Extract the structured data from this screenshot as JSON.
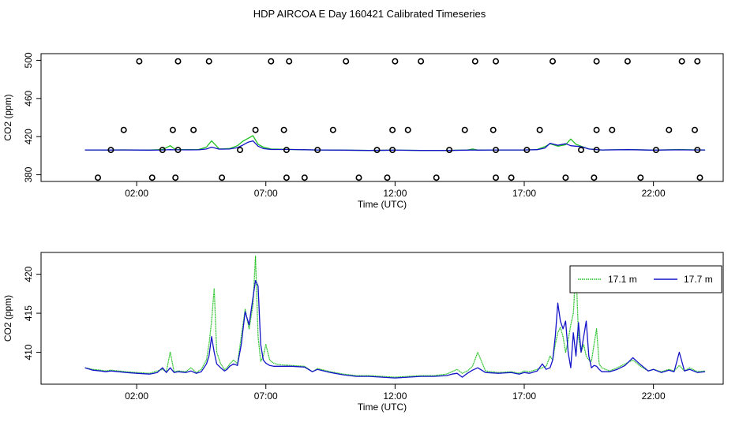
{
  "title": "HDP AIRCOA E  Day 160421  Calibrated Timeseries",
  "colors": {
    "green": "#1fc01f",
    "blue": "#1313c8",
    "axis": "#000000"
  },
  "chart_data": [
    {
      "type": "scatter",
      "xlabel": "Time (UTC)",
      "ylabel": "CO2 (ppm)",
      "xlim": [
        -1.7,
        24.7
      ],
      "ylim": [
        373,
        507
      ],
      "xticks": [
        2,
        7,
        12,
        17,
        22
      ],
      "xtick_labels": [
        "02:00",
        "07:00",
        "12:00",
        "17:00",
        "22:00"
      ],
      "yticks": [
        380,
        420,
        460,
        500
      ],
      "ytick_labels": [
        "380",
        "420",
        "460",
        "500"
      ],
      "grid": false,
      "legend": "none",
      "calibration_points": {
        "x": [
          0.5,
          1.0,
          1.5,
          2.1,
          2.6,
          3.0,
          3.4,
          3.5,
          3.6,
          3.6,
          4.2,
          4.8,
          5.3,
          6.0,
          6.6,
          7.2,
          7.7,
          7.8,
          7.8,
          7.9,
          8.5,
          9.0,
          9.6,
          10.1,
          10.6,
          11.3,
          11.7,
          11.9,
          11.9,
          12.0,
          12.5,
          13.0,
          13.6,
          14.1,
          14.7,
          15.1,
          15.8,
          15.9,
          15.9,
          15.9,
          16.5,
          17.1,
          17.6,
          18.1,
          18.6,
          19.2,
          19.7,
          19.8,
          19.8,
          19.8,
          20.4,
          21.0,
          21.5,
          22.1,
          22.6,
          23.1,
          23.6,
          23.7,
          23.7,
          23.8
        ],
        "y": [
          377,
          406,
          427,
          499,
          377,
          406,
          427,
          377,
          406,
          499,
          427,
          499,
          377,
          406,
          427,
          499,
          427,
          377,
          406,
          499,
          377,
          406,
          427,
          499,
          377,
          406,
          377,
          406,
          427,
          499,
          427,
          499,
          377,
          406,
          427,
          499,
          427,
          377,
          406,
          499,
          377,
          406,
          427,
          499,
          377,
          406,
          377,
          406,
          427,
          499,
          427,
          499,
          377,
          406,
          427,
          499,
          427,
          406,
          499,
          377
        ]
      },
      "series": [
        {
          "name": "17.1 m",
          "color": "#1fc01f",
          "x": [
            0,
            0.5,
            1,
            1.5,
            2,
            2.5,
            3.0,
            3.3,
            3.5,
            4.0,
            4.4,
            4.7,
            4.9,
            5.2,
            5.6,
            5.9,
            6.1,
            6.3,
            6.5,
            6.7,
            6.9,
            7.2,
            8,
            9,
            10,
            11,
            12,
            13,
            14,
            14.8,
            15.0,
            15.2,
            16,
            17,
            17.5,
            17.8,
            18.0,
            18.3,
            18.6,
            18.8,
            19.0,
            19.2,
            19.5,
            20,
            21,
            22,
            23,
            23.5,
            24
          ],
          "y": [
            406.0,
            406.0,
            406.0,
            406.2,
            406.0,
            405.9,
            406.5,
            410.5,
            406.5,
            406.3,
            406.5,
            409.0,
            415.5,
            407.0,
            407.5,
            410.5,
            415.0,
            418.0,
            421.0,
            412.0,
            409.0,
            407.0,
            406.5,
            406.0,
            405.8,
            405.5,
            405.8,
            405.5,
            405.5,
            406.0,
            407.0,
            406.0,
            406.0,
            406.0,
            406.5,
            409.5,
            412.5,
            410.0,
            411.5,
            417.5,
            412.0,
            410.0,
            407.0,
            406.0,
            406.5,
            405.8,
            406.5,
            406.2,
            406.0
          ]
        },
        {
          "name": "17.7 m",
          "color": "#1313c8",
          "x": [
            0,
            0.5,
            1,
            1.5,
            2,
            2.5,
            3.0,
            3.3,
            3.5,
            4.0,
            4.4,
            4.7,
            4.9,
            5.2,
            5.6,
            5.9,
            6.1,
            6.3,
            6.5,
            6.7,
            6.9,
            7.2,
            8,
            9,
            10,
            11,
            12,
            13,
            14,
            14.8,
            15.0,
            15.2,
            16,
            17,
            17.5,
            17.8,
            18.0,
            18.3,
            18.6,
            18.8,
            19.0,
            19.2,
            19.5,
            20,
            21,
            22,
            23,
            23.5,
            24
          ],
          "y": [
            406.0,
            406.0,
            405.9,
            406.0,
            405.9,
            405.8,
            406.0,
            406.3,
            406.2,
            406.1,
            406.2,
            407.0,
            409.0,
            406.8,
            407.0,
            408.5,
            411.0,
            414.0,
            415.5,
            410.0,
            407.5,
            406.5,
            406.5,
            406.0,
            405.8,
            405.5,
            405.8,
            405.5,
            405.5,
            405.8,
            406.0,
            405.8,
            406.0,
            406.0,
            406.3,
            408.0,
            413.0,
            411.0,
            412.5,
            410.5,
            410.0,
            409.5,
            407.0,
            406.0,
            406.3,
            405.8,
            406.2,
            406.0,
            406.0
          ]
        }
      ]
    },
    {
      "type": "line",
      "xlabel": "Time (UTC)",
      "ylabel": "CO2 (ppm)",
      "xlim": [
        -1.7,
        24.7
      ],
      "ylim": [
        405.9,
        422.8
      ],
      "xticks": [
        2,
        7,
        12,
        17,
        22
      ],
      "xtick_labels": [
        "02:00",
        "07:00",
        "12:00",
        "17:00",
        "22:00"
      ],
      "yticks": [
        410,
        415,
        420
      ],
      "ytick_labels": [
        "410",
        "415",
        "420"
      ],
      "grid": false,
      "legend": "top-right",
      "series": [
        {
          "name": "17.1 m",
          "color": "#1fc01f",
          "x": [
            0,
            0.3,
            0.6,
            0.8,
            1.0,
            1.3,
            1.6,
            2.0,
            2.5,
            2.8,
            3.0,
            3.15,
            3.3,
            3.45,
            3.6,
            3.9,
            4.1,
            4.3,
            4.5,
            4.7,
            4.8,
            4.9,
            5.0,
            5.1,
            5.25,
            5.4,
            5.5,
            5.6,
            5.75,
            5.9,
            6.05,
            6.2,
            6.35,
            6.5,
            6.6,
            6.7,
            6.8,
            6.9,
            7.0,
            7.15,
            7.3,
            7.5,
            8.0,
            8.5,
            8.8,
            9.0,
            9.5,
            10.0,
            10.5,
            11.0,
            11.5,
            12.0,
            12.5,
            13.0,
            13.5,
            14.0,
            14.2,
            14.4,
            14.6,
            14.8,
            15.0,
            15.2,
            15.5,
            16.0,
            16.5,
            16.8,
            17.0,
            17.2,
            17.5,
            17.7,
            17.85,
            18.0,
            18.1,
            18.2,
            18.3,
            18.4,
            18.5,
            18.6,
            18.7,
            18.8,
            18.9,
            19.0,
            19.1,
            19.2,
            19.3,
            19.4,
            19.5,
            19.6,
            19.7,
            19.8,
            19.9,
            20.0,
            20.3,
            20.6,
            20.9,
            21.2,
            21.5,
            21.8,
            22.0,
            22.3,
            22.6,
            22.8,
            23.0,
            23.2,
            23.4,
            23.7,
            24.0
          ],
          "y": [
            408.0,
            407.8,
            407.7,
            407.6,
            407.7,
            407.6,
            407.5,
            407.4,
            407.3,
            407.6,
            407.8,
            407.5,
            410.0,
            407.5,
            407.6,
            407.5,
            408.0,
            407.4,
            407.8,
            409.0,
            411.0,
            414.0,
            418.2,
            410.0,
            408.5,
            407.8,
            408.0,
            408.5,
            409.0,
            408.5,
            412.0,
            415.5,
            413.0,
            416.0,
            422.3,
            412.0,
            408.8,
            409.5,
            411.0,
            409.0,
            408.6,
            408.4,
            408.3,
            408.2,
            407.5,
            407.9,
            407.5,
            407.2,
            407.0,
            407.0,
            406.9,
            406.8,
            406.9,
            407.0,
            407.0,
            407.2,
            407.5,
            407.8,
            407.3,
            407.6,
            408.2,
            410.0,
            407.6,
            407.4,
            407.5,
            407.3,
            407.6,
            407.5,
            407.8,
            408.0,
            408.2,
            409.5,
            409.0,
            411.0,
            412.5,
            413.2,
            412.0,
            410.0,
            411.5,
            413.5,
            415.0,
            421.0,
            412.0,
            410.0,
            411.0,
            409.5,
            409.0,
            408.8,
            411.0,
            413.0,
            408.5,
            408.0,
            407.6,
            408.0,
            408.5,
            409.0,
            408.2,
            407.6,
            407.8,
            407.5,
            407.8,
            407.6,
            408.3,
            407.6,
            408.0,
            407.5,
            407.6
          ]
        },
        {
          "name": "17.7 m",
          "color": "#1313c8",
          "x": [
            0,
            0.3,
            0.6,
            0.8,
            1.0,
            1.3,
            1.6,
            2.0,
            2.5,
            2.8,
            3.0,
            3.15,
            3.3,
            3.45,
            3.6,
            3.9,
            4.1,
            4.3,
            4.5,
            4.7,
            4.8,
            4.9,
            5.0,
            5.1,
            5.25,
            5.4,
            5.5,
            5.6,
            5.75,
            5.9,
            6.05,
            6.2,
            6.35,
            6.5,
            6.6,
            6.7,
            6.8,
            6.9,
            7.0,
            7.15,
            7.3,
            7.5,
            8.0,
            8.5,
            8.8,
            9.0,
            9.5,
            10.0,
            10.5,
            11.0,
            11.5,
            12.0,
            12.5,
            13.0,
            13.5,
            14.0,
            14.2,
            14.4,
            14.6,
            14.8,
            15.0,
            15.2,
            15.5,
            16.0,
            16.5,
            16.8,
            17.0,
            17.2,
            17.5,
            17.7,
            17.85,
            18.0,
            18.1,
            18.2,
            18.3,
            18.4,
            18.5,
            18.6,
            18.7,
            18.8,
            18.9,
            19.0,
            19.1,
            19.2,
            19.3,
            19.4,
            19.5,
            19.6,
            19.7,
            19.8,
            19.9,
            20.0,
            20.3,
            20.6,
            20.9,
            21.2,
            21.5,
            21.8,
            22.0,
            22.3,
            22.6,
            22.8,
            23.0,
            23.2,
            23.4,
            23.7,
            24.0
          ],
          "y": [
            408.0,
            407.7,
            407.6,
            407.5,
            407.6,
            407.5,
            407.4,
            407.3,
            407.2,
            407.4,
            408.0,
            407.4,
            408.0,
            407.4,
            407.5,
            407.4,
            407.6,
            407.3,
            407.5,
            408.5,
            409.5,
            412.0,
            410.0,
            408.5,
            408.0,
            407.6,
            407.8,
            408.2,
            408.5,
            408.3,
            411.0,
            415.2,
            413.5,
            417.0,
            419.2,
            418.5,
            411.0,
            409.0,
            408.6,
            408.3,
            408.2,
            408.2,
            408.2,
            408.1,
            407.5,
            407.8,
            407.4,
            407.1,
            406.9,
            406.9,
            406.8,
            406.7,
            406.8,
            406.9,
            406.9,
            407.0,
            407.2,
            407.3,
            406.8,
            407.3,
            407.7,
            408.0,
            407.4,
            407.3,
            407.4,
            407.2,
            407.4,
            407.3,
            407.6,
            408.5,
            407.8,
            408.0,
            409.0,
            412.0,
            416.3,
            414.0,
            413.0,
            414.0,
            410.0,
            408.0,
            412.5,
            409.5,
            413.8,
            410.0,
            412.0,
            414.0,
            409.5,
            408.0,
            408.3,
            408.2,
            407.8,
            407.5,
            407.5,
            407.8,
            408.3,
            409.3,
            408.4,
            407.6,
            407.8,
            407.4,
            407.7,
            407.5,
            410.0,
            407.6,
            407.8,
            407.4,
            407.5
          ]
        }
      ]
    }
  ]
}
